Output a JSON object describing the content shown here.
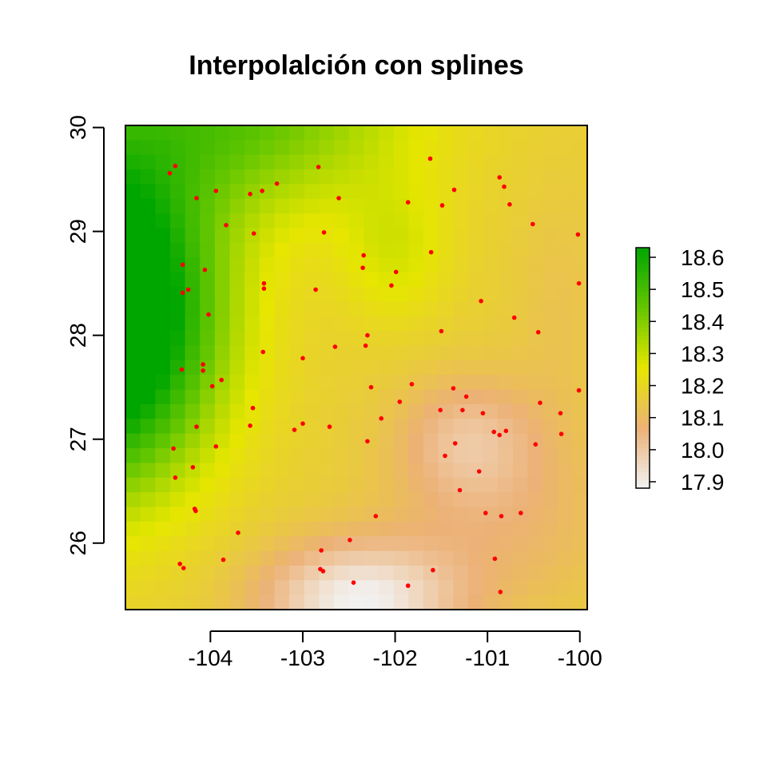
{
  "chart_data": {
    "type": "heatmap",
    "title": "Interpolalción con splines",
    "xlabel": "",
    "ylabel": "",
    "xlim": [
      -104.92,
      -99.92
    ],
    "ylim": [
      25.36,
      30.02
    ],
    "x_ticks": [
      "-104",
      "-103",
      "-102",
      "-101",
      "-100"
    ],
    "x_tick_values": [
      -104,
      -103,
      -102,
      -101,
      -100
    ],
    "y_ticks": [
      "26",
      "27",
      "28",
      "29",
      "30"
    ],
    "y_tick_values": [
      26,
      27,
      28,
      29,
      30
    ],
    "legend": {
      "position": "right",
      "labels": [
        "18.6",
        "18.5",
        "18.4",
        "18.3",
        "18.2",
        "18.1",
        "18.0",
        "17.9"
      ],
      "values": [
        18.6,
        18.5,
        18.4,
        18.3,
        18.2,
        18.1,
        18.0,
        17.9
      ],
      "range": [
        17.88,
        18.63
      ]
    },
    "colors": {
      "palette": [
        "#f2f2f2",
        "#ecb176",
        "#e6e600",
        "#63c600",
        "#00a600"
      ],
      "points": "#ff0000",
      "axis": "#000000"
    },
    "field_description": "spline surface: high (green) in west/northwest, ridge of yellow diagonal, low (pale) in south-center and southeast",
    "points": [
      {
        "x": -104.38,
        "y": 29.63
      },
      {
        "x": -104.44,
        "y": 29.56
      },
      {
        "x": -104.15,
        "y": 29.32
      },
      {
        "x": -103.94,
        "y": 29.39
      },
      {
        "x": -103.57,
        "y": 29.36
      },
      {
        "x": -103.44,
        "y": 29.39
      },
      {
        "x": -103.28,
        "y": 29.46
      },
      {
        "x": -102.83,
        "y": 29.62
      },
      {
        "x": -102.61,
        "y": 29.32
      },
      {
        "x": -101.62,
        "y": 29.7
      },
      {
        "x": -101.86,
        "y": 29.28
      },
      {
        "x": -101.49,
        "y": 29.25
      },
      {
        "x": -101.36,
        "y": 29.4
      },
      {
        "x": -100.87,
        "y": 29.52
      },
      {
        "x": -100.82,
        "y": 29.43
      },
      {
        "x": -100.76,
        "y": 29.26
      },
      {
        "x": -100.51,
        "y": 29.07
      },
      {
        "x": -100.02,
        "y": 28.97
      },
      {
        "x": -103.83,
        "y": 29.06
      },
      {
        "x": -103.53,
        "y": 28.98
      },
      {
        "x": -102.77,
        "y": 28.99
      },
      {
        "x": -102.34,
        "y": 28.77
      },
      {
        "x": -102.35,
        "y": 28.65
      },
      {
        "x": -101.61,
        "y": 28.8
      },
      {
        "x": -101.99,
        "y": 28.61
      },
      {
        "x": -102.04,
        "y": 28.48
      },
      {
        "x": -104.3,
        "y": 28.68
      },
      {
        "x": -104.06,
        "y": 28.63
      },
      {
        "x": -104.24,
        "y": 28.44
      },
      {
        "x": -104.3,
        "y": 28.41
      },
      {
        "x": -103.42,
        "y": 28.5
      },
      {
        "x": -103.42,
        "y": 28.45
      },
      {
        "x": -102.86,
        "y": 28.44
      },
      {
        "x": -101.07,
        "y": 28.33
      },
      {
        "x": -100.01,
        "y": 28.5
      },
      {
        "x": -100.71,
        "y": 28.17
      },
      {
        "x": -104.02,
        "y": 28.2
      },
      {
        "x": -101.5,
        "y": 28.04
      },
      {
        "x": -100.45,
        "y": 28.03
      },
      {
        "x": -102.3,
        "y": 28.0
      },
      {
        "x": -102.32,
        "y": 27.9
      },
      {
        "x": -102.65,
        "y": 27.89
      },
      {
        "x": -103.43,
        "y": 27.84
      },
      {
        "x": -103.0,
        "y": 27.78
      },
      {
        "x": -104.08,
        "y": 27.72
      },
      {
        "x": -104.08,
        "y": 27.66
      },
      {
        "x": -104.31,
        "y": 27.67
      },
      {
        "x": -103.88,
        "y": 27.57
      },
      {
        "x": -103.98,
        "y": 27.51
      },
      {
        "x": -101.82,
        "y": 27.53
      },
      {
        "x": -102.26,
        "y": 27.5
      },
      {
        "x": -101.37,
        "y": 27.49
      },
      {
        "x": -101.23,
        "y": 27.41
      },
      {
        "x": -101.95,
        "y": 27.36
      },
      {
        "x": -100.43,
        "y": 27.35
      },
      {
        "x": -100.01,
        "y": 27.47
      },
      {
        "x": -103.54,
        "y": 27.3
      },
      {
        "x": -101.51,
        "y": 27.28
      },
      {
        "x": -101.27,
        "y": 27.28
      },
      {
        "x": -101.05,
        "y": 27.25
      },
      {
        "x": -100.21,
        "y": 27.25
      },
      {
        "x": -102.15,
        "y": 27.2
      },
      {
        "x": -103.0,
        "y": 27.15
      },
      {
        "x": -103.57,
        "y": 27.13
      },
      {
        "x": -102.71,
        "y": 27.12
      },
      {
        "x": -103.09,
        "y": 27.09
      },
      {
        "x": -104.15,
        "y": 27.12
      },
      {
        "x": -100.93,
        "y": 27.07
      },
      {
        "x": -100.8,
        "y": 27.08
      },
      {
        "x": -100.87,
        "y": 27.04
      },
      {
        "x": -100.2,
        "y": 27.05
      },
      {
        "x": -102.3,
        "y": 26.98
      },
      {
        "x": -101.35,
        "y": 26.96
      },
      {
        "x": -100.48,
        "y": 26.95
      },
      {
        "x": -103.94,
        "y": 26.93
      },
      {
        "x": -104.4,
        "y": 26.91
      },
      {
        "x": -101.46,
        "y": 26.84
      },
      {
        "x": -104.19,
        "y": 26.73
      },
      {
        "x": -101.09,
        "y": 26.69
      },
      {
        "x": -104.38,
        "y": 26.63
      },
      {
        "x": -101.3,
        "y": 26.51
      },
      {
        "x": -104.17,
        "y": 26.33
      },
      {
        "x": -104.16,
        "y": 26.31
      },
      {
        "x": -101.02,
        "y": 26.29
      },
      {
        "x": -100.64,
        "y": 26.29
      },
      {
        "x": -100.85,
        "y": 26.26
      },
      {
        "x": -102.21,
        "y": 26.26
      },
      {
        "x": -103.7,
        "y": 26.1
      },
      {
        "x": -102.49,
        "y": 26.03
      },
      {
        "x": -102.8,
        "y": 25.93
      },
      {
        "x": -103.86,
        "y": 25.84
      },
      {
        "x": -100.92,
        "y": 25.85
      },
      {
        "x": -104.33,
        "y": 25.8
      },
      {
        "x": -104.29,
        "y": 25.76
      },
      {
        "x": -102.81,
        "y": 25.75
      },
      {
        "x": -102.78,
        "y": 25.73
      },
      {
        "x": -101.59,
        "y": 25.74
      },
      {
        "x": -102.45,
        "y": 25.62
      },
      {
        "x": -101.86,
        "y": 25.59
      },
      {
        "x": -100.86,
        "y": 25.53
      }
    ]
  }
}
